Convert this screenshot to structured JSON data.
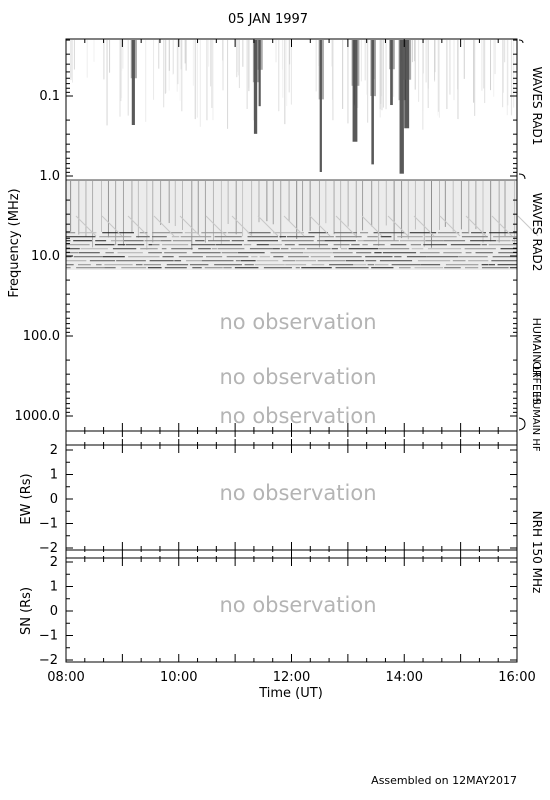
{
  "title": "05 JAN 1997",
  "footer": "Assembled on 12MAY2017",
  "no_observation": "no observation",
  "chart_data": [
    {
      "type": "heatmap",
      "panel": "dynamic-spectrum",
      "ylabel": "Frequency (MHz)",
      "y_scale": "log",
      "y_inverted": true,
      "ylim": [
        0.02,
        1500
      ],
      "y_ticks": [
        0.1,
        1.0,
        10.0,
        100.0,
        1000.0
      ],
      "y_tick_labels": [
        "0.1",
        "1.0",
        "10.0",
        "100.0",
        "1000.0"
      ],
      "xlim": [
        "08:00",
        "16:00"
      ],
      "colormap": "grayscale (white = low, black = high intensity)",
      "bands": [
        {
          "name": "WAVES RAD1",
          "freq_range_mhz": [
            0.02,
            1.0
          ],
          "observed": true
        },
        {
          "name": "WAVES RAD2",
          "freq_range_mhz": [
            1.0,
            14.0
          ],
          "observed": true
        },
        {
          "name": "HUMAIN LF",
          "freq_range_mhz": [
            14.0,
            400
          ],
          "observed": false
        },
        {
          "name": "ORFEES",
          "freq_range_mhz": [
            400,
            1000
          ],
          "observed": false
        },
        {
          "name": "HUMAIN HF",
          "freq_range_mhz": [
            1000,
            1500
          ],
          "observed": false
        }
      ],
      "radio_bursts_hhmm": [
        "09:10",
        "11:20",
        "11:25",
        "12:30",
        "13:05",
        "13:25",
        "13:45",
        "13:55",
        "14:00"
      ]
    },
    {
      "type": "heatmap",
      "panel": "NRH EW",
      "ylabel": "EW (Rs)",
      "ylim": [
        -2.2,
        2.2
      ],
      "y_ticks": [
        2,
        1,
        0,
        -1,
        -2
      ],
      "y_tick_labels": [
        "2",
        "1",
        "0",
        "−1",
        "−2"
      ],
      "observed": false
    },
    {
      "type": "heatmap",
      "panel": "NRH SN",
      "ylabel": "SN (Rs)",
      "ylim": [
        -2.2,
        2.2
      ],
      "y_ticks": [
        2,
        1,
        0,
        -1,
        -2
      ],
      "y_tick_labels": [
        "2",
        "1",
        "0",
        "−1",
        "−2"
      ],
      "observed": false
    }
  ],
  "right_labels": {
    "rad1": "WAVES RAD1",
    "rad2": "WAVES RAD2",
    "humain_lf": "HUMAIN LF",
    "orfees": "ORFEES",
    "humain_hf": "HUMAIN HF",
    "nrh": "NRH 150 MHz"
  },
  "x_axis": {
    "xlabel": "Time (UT)",
    "xlim": [
      "08:00",
      "16:00"
    ],
    "tick_labels": [
      "08:00",
      "10:00",
      "12:00",
      "14:00",
      "16:00"
    ]
  }
}
